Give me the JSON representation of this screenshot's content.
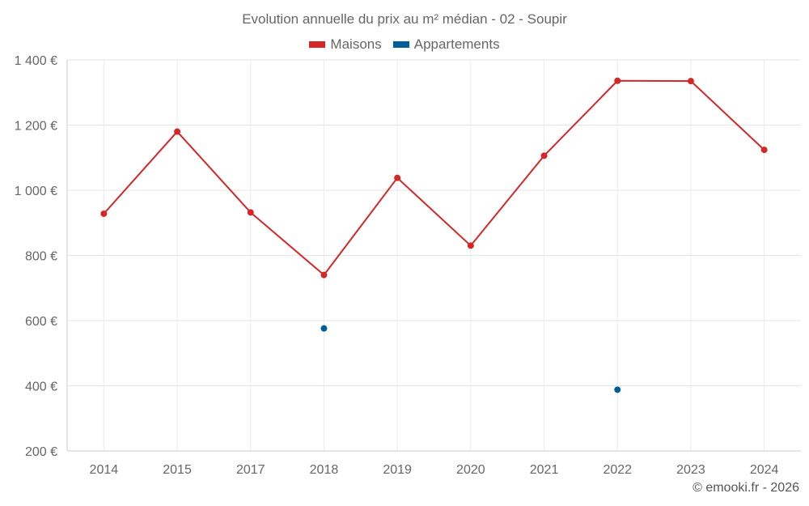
{
  "chart_data": {
    "type": "line",
    "title": "Evolution annuelle du prix au m² médian - 02 - Soupir",
    "categories": [
      "2014",
      "2015",
      "2017",
      "2018",
      "2019",
      "2020",
      "2021",
      "2022",
      "2023",
      "2024"
    ],
    "series": [
      {
        "name": "Maisons",
        "color": "#d62728",
        "values": [
          928,
          1180,
          932,
          740,
          1038,
          830,
          1106,
          1336,
          1335,
          1124
        ]
      },
      {
        "name": "Appartements",
        "color": "#005f99",
        "values": [
          null,
          null,
          null,
          576,
          null,
          null,
          null,
          388,
          null,
          null
        ]
      }
    ],
    "yticks": [
      200,
      400,
      600,
      800,
      1000,
      1200,
      1400
    ],
    "ytick_labels": [
      "200 €",
      "400 €",
      "600 €",
      "800 €",
      "1 000 €",
      "1 200 €",
      "1 400 €"
    ],
    "ylim": [
      200,
      1400
    ],
    "xlabel": "",
    "ylabel": "",
    "legend_position": "top-center",
    "grid": true
  },
  "credits": "© emooki.fr - 2026"
}
